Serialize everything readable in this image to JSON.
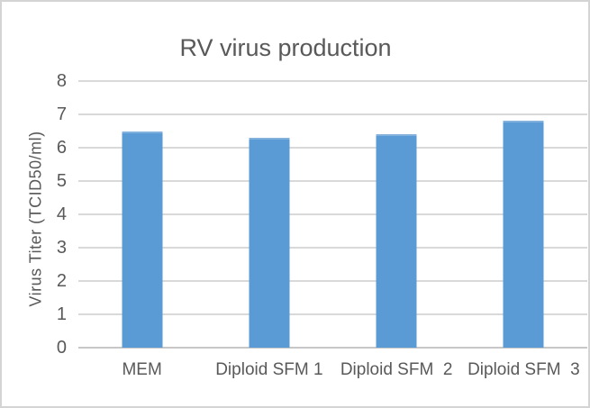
{
  "chart_data": {
    "type": "bar",
    "title": "RV virus production",
    "xlabel": "",
    "ylabel": "Virus Titer (TCID50/ml)",
    "categories": [
      "MEM",
      "Diploid SFM 1",
      "Diploid SFM  2",
      "Diploid SFM  3"
    ],
    "values": [
      6.5,
      6.3,
      6.4,
      6.8
    ],
    "ylim": [
      0,
      8
    ],
    "yticks": [
      0,
      1,
      2,
      3,
      4,
      5,
      6,
      7,
      8
    ],
    "grid": true,
    "legend": "none",
    "colors": {
      "bar": "#5B9BD5",
      "text": "#595959",
      "gridline": "#d9d9d9",
      "axis_line": "#c7c7c7",
      "frame_border": "#d4d4d4",
      "background": "#ffffff"
    }
  }
}
